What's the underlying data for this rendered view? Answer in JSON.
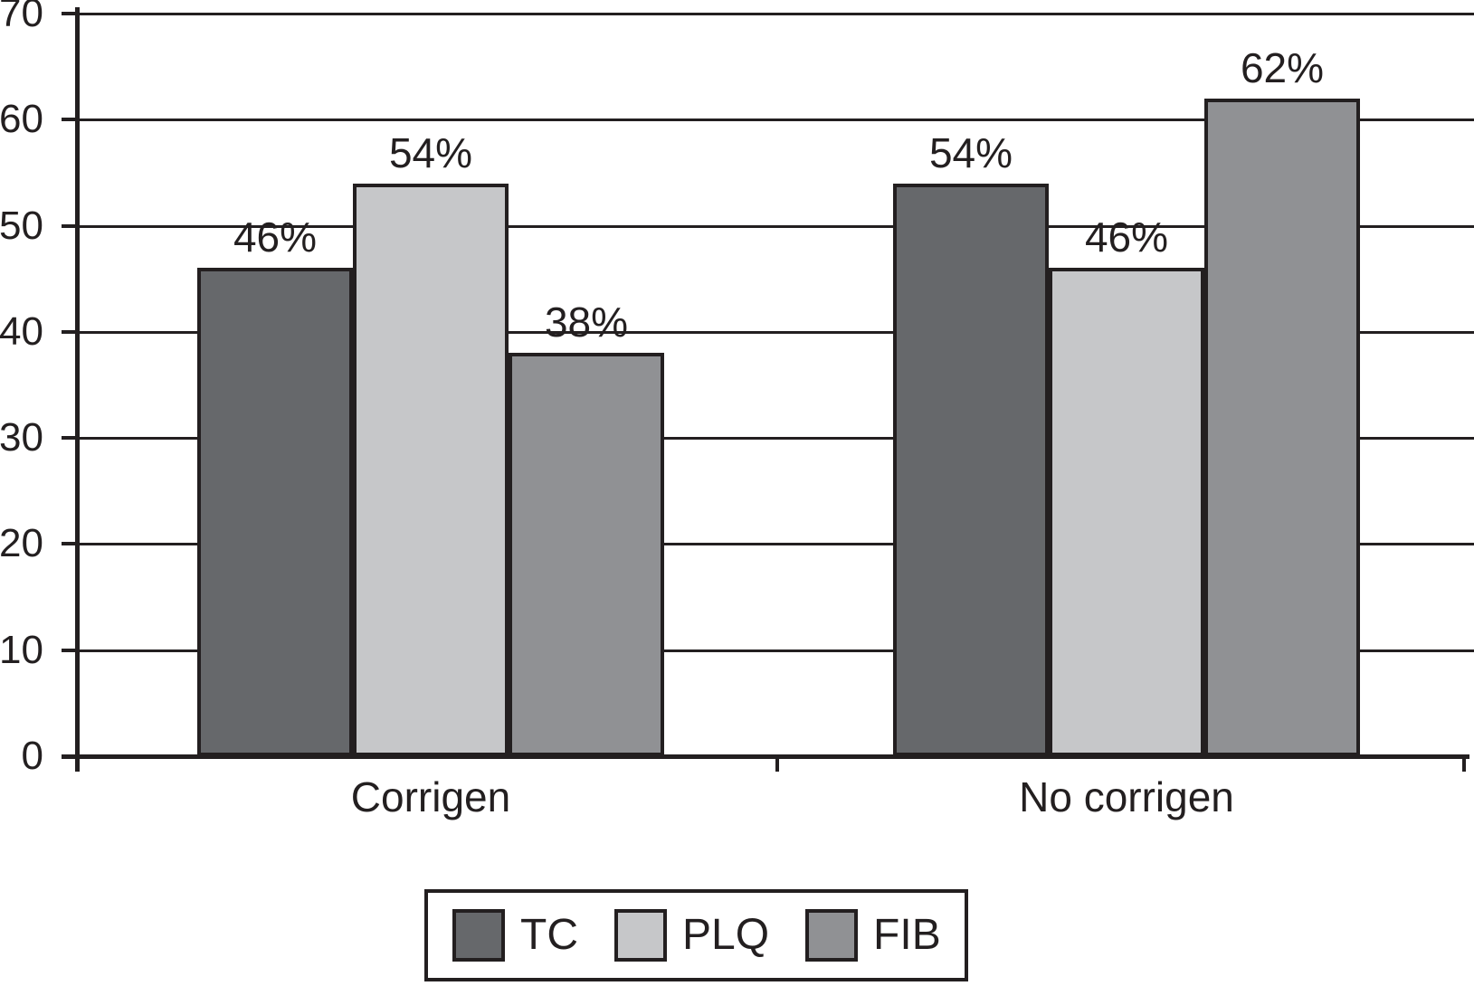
{
  "chart_data": {
    "type": "bar",
    "title": "",
    "xlabel": "",
    "ylabel": "",
    "categories": [
      "Corrigen",
      "No corrigen"
    ],
    "series": [
      {
        "name": "TC",
        "color": "#66686b",
        "values": [
          46,
          54
        ],
        "data_labels": [
          "46%",
          "54%"
        ]
      },
      {
        "name": "PLQ",
        "color": "#c6c7c9",
        "values": [
          54,
          46
        ],
        "data_labels": [
          "54%",
          "46%"
        ]
      },
      {
        "name": "FIB",
        "color": "#909194",
        "values": [
          38,
          62
        ],
        "data_labels": [
          "38%",
          "62%"
        ]
      }
    ],
    "ylim": [
      0,
      70
    ],
    "y_ticks": [
      "0",
      "10",
      "20",
      "30",
      "40",
      "50",
      "60",
      "70"
    ],
    "grid": true,
    "legend_position": "bottom"
  },
  "colors": {
    "line": "#231f20",
    "background": "#ffffff",
    "tc": "#66686b",
    "plq": "#c6c7c9",
    "fib": "#909194"
  }
}
